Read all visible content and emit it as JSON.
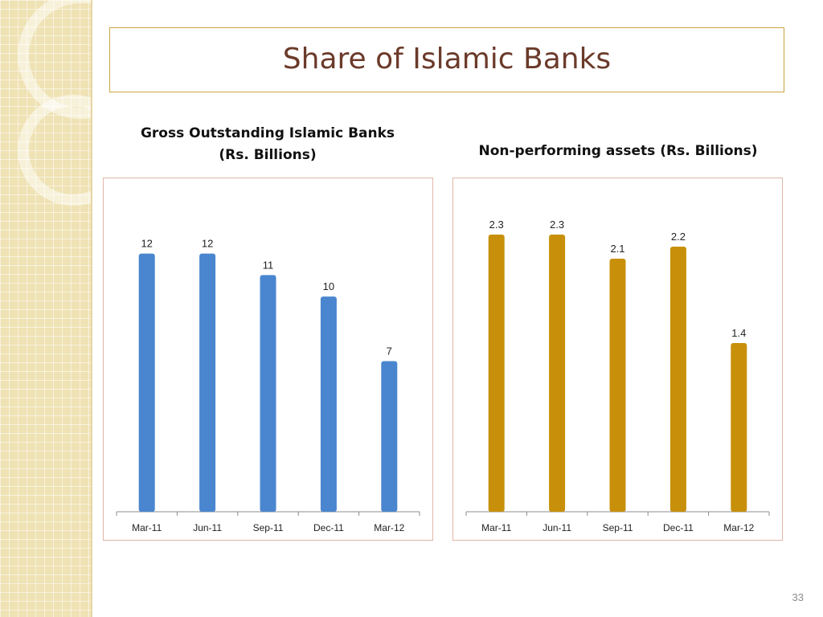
{
  "slide": {
    "title": "Share of Islamic Banks",
    "page_number": "33"
  },
  "colors": {
    "title_text": "#6b3a2a",
    "title_border": "#c9a640",
    "chart1_bar": "#4a86cf",
    "chart2_bar": "#c8900a",
    "background_band": "#efe2b4"
  },
  "chart_data": [
    {
      "type": "bar",
      "title_lines": [
        "Gross Outstanding Islamic Banks",
        "(Rs. Billions)"
      ],
      "categories": [
        "Mar-11",
        "Jun-11",
        "Sep-11",
        "Dec-11",
        "Mar-12"
      ],
      "values": [
        12,
        12,
        11,
        10,
        7
      ],
      "data_labels": [
        "12",
        "12",
        "11",
        "10",
        "7"
      ],
      "ylim": [
        0,
        14
      ],
      "grid": false,
      "legend": "none"
    },
    {
      "type": "bar",
      "title_lines": [
        "Non-performing assets (Rs. Billions)"
      ],
      "categories": [
        "Mar-11",
        "Jun-11",
        "Sep-11",
        "Dec-11",
        "Mar-12"
      ],
      "values": [
        2.3,
        2.3,
        2.1,
        2.2,
        1.4
      ],
      "data_labels": [
        "2.3",
        "2.3",
        "2.1",
        "2.2",
        "1.4"
      ],
      "ylim": [
        0,
        2.5
      ],
      "grid": false,
      "legend": "none"
    }
  ]
}
